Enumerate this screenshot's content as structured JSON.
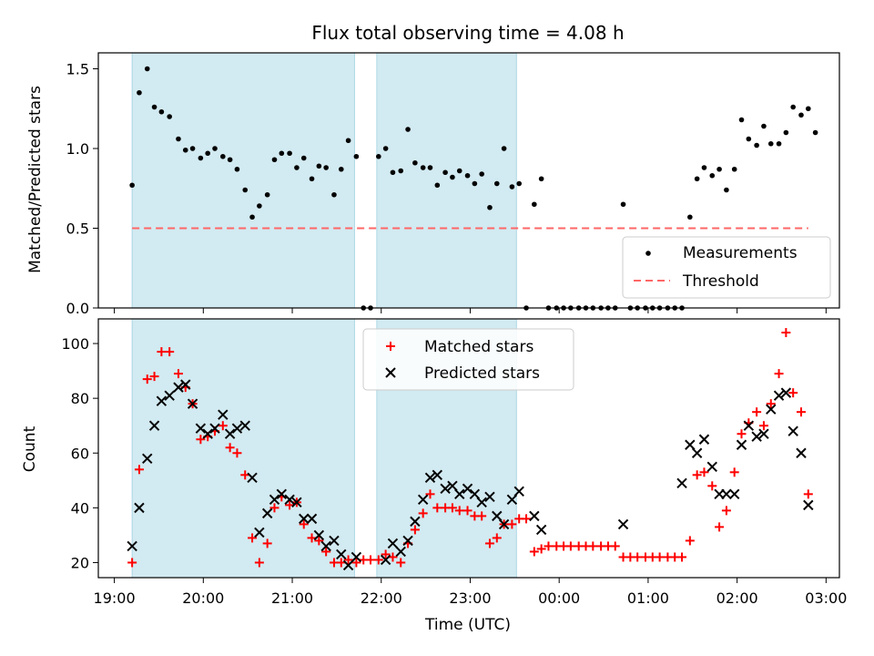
{
  "chart_data": [
    {
      "type": "scatter",
      "title": "Flux total observing time = 4.08 h",
      "ylabel": "Matched/Predicted stars",
      "xlabel": "",
      "x_unit": "UTC hours (hours after 24:00 continue past 24)",
      "xlim": [
        18.82,
        27.15
      ],
      "ylim": [
        0,
        1.6
      ],
      "yticks": [
        0.0,
        0.5,
        1.0,
        1.5
      ],
      "ytick_labels": [
        "0.0",
        "0.5",
        "1.0",
        "1.5"
      ],
      "shaded_intervals": [
        [
          19.2,
          21.7
        ],
        [
          21.95,
          23.52
        ]
      ],
      "shade_color": "#add8e6",
      "legend": {
        "position": "lower right",
        "entries": [
          "Measurements",
          "Threshold"
        ]
      },
      "threshold": {
        "name": "Threshold",
        "value": 0.5,
        "x_range": [
          19.2,
          26.8
        ],
        "color": "#ff6666",
        "style": "dashed"
      },
      "series": [
        {
          "name": "Measurements",
          "color": "#000000",
          "marker": "dot",
          "points": [
            [
              19.2,
              0.77
            ],
            [
              19.28,
              1.35
            ],
            [
              19.37,
              1.5
            ],
            [
              19.45,
              1.26
            ],
            [
              19.53,
              1.23
            ],
            [
              19.62,
              1.2
            ],
            [
              19.72,
              1.06
            ],
            [
              19.8,
              0.99
            ],
            [
              19.88,
              1.0
            ],
            [
              19.97,
              0.94
            ],
            [
              20.05,
              0.97
            ],
            [
              20.13,
              1.0
            ],
            [
              20.22,
              0.95
            ],
            [
              20.3,
              0.93
            ],
            [
              20.38,
              0.87
            ],
            [
              20.47,
              0.74
            ],
            [
              20.55,
              0.57
            ],
            [
              20.63,
              0.64
            ],
            [
              20.72,
              0.71
            ],
            [
              20.8,
              0.93
            ],
            [
              20.88,
              0.97
            ],
            [
              20.97,
              0.97
            ],
            [
              21.05,
              0.88
            ],
            [
              21.13,
              0.94
            ],
            [
              21.22,
              0.81
            ],
            [
              21.3,
              0.89
            ],
            [
              21.38,
              0.88
            ],
            [
              21.47,
              0.71
            ],
            [
              21.55,
              0.87
            ],
            [
              21.63,
              1.05
            ],
            [
              21.72,
              0.95
            ],
            [
              21.8,
              0.0
            ],
            [
              21.88,
              0.0
            ],
            [
              21.97,
              0.95
            ],
            [
              22.05,
              1.0
            ],
            [
              22.13,
              0.85
            ],
            [
              22.22,
              0.86
            ],
            [
              22.3,
              1.12
            ],
            [
              22.38,
              0.91
            ],
            [
              22.47,
              0.88
            ],
            [
              22.55,
              0.88
            ],
            [
              22.63,
              0.77
            ],
            [
              22.72,
              0.85
            ],
            [
              22.8,
              0.82
            ],
            [
              22.88,
              0.86
            ],
            [
              22.97,
              0.83
            ],
            [
              23.05,
              0.78
            ],
            [
              23.13,
              0.84
            ],
            [
              23.22,
              0.63
            ],
            [
              23.3,
              0.78
            ],
            [
              23.38,
              1.0
            ],
            [
              23.47,
              0.76
            ],
            [
              23.55,
              0.78
            ],
            [
              23.63,
              0.0
            ],
            [
              23.72,
              0.65
            ],
            [
              23.8,
              0.81
            ],
            [
              23.88,
              0.0
            ],
            [
              23.97,
              0.0
            ],
            [
              24.05,
              0.0
            ],
            [
              24.13,
              0.0
            ],
            [
              24.22,
              0.0
            ],
            [
              24.3,
              0.0
            ],
            [
              24.38,
              0.0
            ],
            [
              24.47,
              0.0
            ],
            [
              24.55,
              0.0
            ],
            [
              24.63,
              0.0
            ],
            [
              24.72,
              0.65
            ],
            [
              24.8,
              0.0
            ],
            [
              24.88,
              0.0
            ],
            [
              24.97,
              0.0
            ],
            [
              25.05,
              0.0
            ],
            [
              25.13,
              0.0
            ],
            [
              25.22,
              0.0
            ],
            [
              25.3,
              0.0
            ],
            [
              25.38,
              0.0
            ],
            [
              25.47,
              0.57
            ],
            [
              25.55,
              0.81
            ],
            [
              25.63,
              0.88
            ],
            [
              25.72,
              0.83
            ],
            [
              25.8,
              0.87
            ],
            [
              25.88,
              0.74
            ],
            [
              25.97,
              0.87
            ],
            [
              26.05,
              1.18
            ],
            [
              26.13,
              1.06
            ],
            [
              26.22,
              1.02
            ],
            [
              26.3,
              1.14
            ],
            [
              26.38,
              1.03
            ],
            [
              26.47,
              1.03
            ],
            [
              26.55,
              1.1
            ],
            [
              26.63,
              1.26
            ],
            [
              26.72,
              1.21
            ],
            [
              26.8,
              1.25
            ],
            [
              26.88,
              1.1
            ]
          ]
        }
      ]
    },
    {
      "type": "scatter",
      "title": "",
      "ylabel": "Count",
      "xlabel": "Time (UTC)",
      "x_unit": "UTC hours (hours after 24:00 continue past 24)",
      "xlim": [
        18.82,
        27.15
      ],
      "ylim": [
        14.5,
        109
      ],
      "yticks": [
        20,
        40,
        60,
        80,
        100
      ],
      "ytick_labels": [
        "20",
        "40",
        "60",
        "80",
        "100"
      ],
      "xticks": [
        19,
        20,
        21,
        22,
        23,
        24,
        25,
        26,
        27
      ],
      "xtick_labels": [
        "19:00",
        "20:00",
        "21:00",
        "22:00",
        "23:00",
        "00:00",
        "01:00",
        "02:00",
        "03:00"
      ],
      "shaded_intervals": [
        [
          19.2,
          21.7
        ],
        [
          21.95,
          23.52
        ]
      ],
      "shade_color": "#add8e6",
      "legend": {
        "position": "upper center",
        "entries": [
          "Matched stars",
          "Predicted stars"
        ]
      },
      "series": [
        {
          "name": "Matched stars",
          "color": "#ff0000",
          "marker": "plus",
          "points": [
            [
              19.2,
              20
            ],
            [
              19.28,
              54
            ],
            [
              19.37,
              87
            ],
            [
              19.45,
              88
            ],
            [
              19.53,
              97
            ],
            [
              19.62,
              97
            ],
            [
              19.72,
              89
            ],
            [
              19.8,
              84
            ],
            [
              19.88,
              78
            ],
            [
              19.97,
              65
            ],
            [
              20.05,
              66
            ],
            [
              20.13,
              68
            ],
            [
              20.22,
              70
            ],
            [
              20.3,
              62
            ],
            [
              20.38,
              60
            ],
            [
              20.47,
              52
            ],
            [
              20.55,
              29
            ],
            [
              20.63,
              20
            ],
            [
              20.72,
              27
            ],
            [
              20.8,
              40
            ],
            [
              20.88,
              44
            ],
            [
              20.97,
              41
            ],
            [
              21.05,
              42
            ],
            [
              21.13,
              34
            ],
            [
              21.22,
              29
            ],
            [
              21.3,
              28
            ],
            [
              21.38,
              24
            ],
            [
              21.47,
              20
            ],
            [
              21.55,
              20
            ],
            [
              21.63,
              21
            ],
            [
              21.72,
              20
            ],
            [
              21.8,
              21
            ],
            [
              21.88,
              21
            ],
            [
              21.97,
              21
            ],
            [
              22.05,
              23
            ],
            [
              22.13,
              22
            ],
            [
              22.22,
              20
            ],
            [
              22.3,
              27
            ],
            [
              22.38,
              32
            ],
            [
              22.47,
              38
            ],
            [
              22.55,
              45
            ],
            [
              22.63,
              40
            ],
            [
              22.72,
              40
            ],
            [
              22.8,
              40
            ],
            [
              22.88,
              39
            ],
            [
              22.97,
              39
            ],
            [
              23.05,
              37
            ],
            [
              23.13,
              37
            ],
            [
              23.22,
              27
            ],
            [
              23.3,
              29
            ],
            [
              23.38,
              34
            ],
            [
              23.47,
              34
            ],
            [
              23.55,
              36
            ],
            [
              23.63,
              36
            ],
            [
              23.72,
              24
            ],
            [
              23.8,
              25
            ],
            [
              23.88,
              26
            ],
            [
              23.97,
              26
            ],
            [
              24.05,
              26
            ],
            [
              24.13,
              26
            ],
            [
              24.22,
              26
            ],
            [
              24.3,
              26
            ],
            [
              24.38,
              26
            ],
            [
              24.47,
              26
            ],
            [
              24.55,
              26
            ],
            [
              24.63,
              26
            ],
            [
              24.72,
              22
            ],
            [
              24.8,
              22
            ],
            [
              24.88,
              22
            ],
            [
              24.97,
              22
            ],
            [
              25.05,
              22
            ],
            [
              25.13,
              22
            ],
            [
              25.22,
              22
            ],
            [
              25.3,
              22
            ],
            [
              25.38,
              22
            ],
            [
              25.47,
              28
            ],
            [
              25.55,
              52
            ],
            [
              25.63,
              53
            ],
            [
              25.72,
              48
            ],
            [
              25.8,
              33
            ],
            [
              25.88,
              39
            ],
            [
              25.97,
              53
            ],
            [
              26.05,
              67
            ],
            [
              26.13,
              71
            ],
            [
              26.22,
              75
            ],
            [
              26.3,
              70
            ],
            [
              26.38,
              78
            ],
            [
              26.47,
              89
            ],
            [
              26.55,
              104
            ],
            [
              26.63,
              82
            ],
            [
              26.72,
              75
            ],
            [
              26.8,
              45
            ]
          ]
        },
        {
          "name": "Predicted stars",
          "color": "#000000",
          "marker": "x",
          "points": [
            [
              19.2,
              26
            ],
            [
              19.28,
              40
            ],
            [
              19.37,
              58
            ],
            [
              19.45,
              70
            ],
            [
              19.53,
              79
            ],
            [
              19.62,
              81
            ],
            [
              19.72,
              84
            ],
            [
              19.8,
              85
            ],
            [
              19.88,
              78
            ],
            [
              19.97,
              69
            ],
            [
              20.05,
              67
            ],
            [
              20.13,
              69
            ],
            [
              20.22,
              74
            ],
            [
              20.3,
              67
            ],
            [
              20.38,
              69
            ],
            [
              20.47,
              70
            ],
            [
              20.55,
              51
            ],
            [
              20.63,
              31
            ],
            [
              20.72,
              38
            ],
            [
              20.8,
              43
            ],
            [
              20.88,
              45
            ],
            [
              20.97,
              43
            ],
            [
              21.05,
              42
            ],
            [
              21.13,
              36
            ],
            [
              21.22,
              36
            ],
            [
              21.3,
              30
            ],
            [
              21.38,
              26
            ],
            [
              21.47,
              28
            ],
            [
              21.55,
              23
            ],
            [
              21.63,
              19
            ],
            [
              21.72,
              22
            ],
            [
              22.05,
              21
            ],
            [
              22.13,
              27
            ],
            [
              22.22,
              24
            ],
            [
              22.3,
              28
            ],
            [
              22.38,
              35
            ],
            [
              22.47,
              43
            ],
            [
              22.55,
              51
            ],
            [
              22.63,
              52
            ],
            [
              22.72,
              47
            ],
            [
              22.8,
              48
            ],
            [
              22.88,
              45
            ],
            [
              22.97,
              47
            ],
            [
              23.05,
              45
            ],
            [
              23.13,
              42
            ],
            [
              23.22,
              44
            ],
            [
              23.3,
              37
            ],
            [
              23.38,
              34
            ],
            [
              23.47,
              43
            ],
            [
              23.55,
              46
            ],
            [
              23.72,
              37
            ],
            [
              23.8,
              32
            ],
            [
              24.72,
              34
            ],
            [
              25.38,
              49
            ],
            [
              25.47,
              63
            ],
            [
              25.55,
              60
            ],
            [
              25.63,
              65
            ],
            [
              25.72,
              55
            ],
            [
              25.8,
              45
            ],
            [
              25.88,
              45
            ],
            [
              25.97,
              45
            ],
            [
              26.05,
              63
            ],
            [
              26.13,
              70
            ],
            [
              26.22,
              66
            ],
            [
              26.3,
              67
            ],
            [
              26.38,
              76
            ],
            [
              26.47,
              81
            ],
            [
              26.55,
              82
            ],
            [
              26.63,
              68
            ],
            [
              26.72,
              60
            ],
            [
              26.8,
              41
            ]
          ]
        }
      ]
    }
  ]
}
